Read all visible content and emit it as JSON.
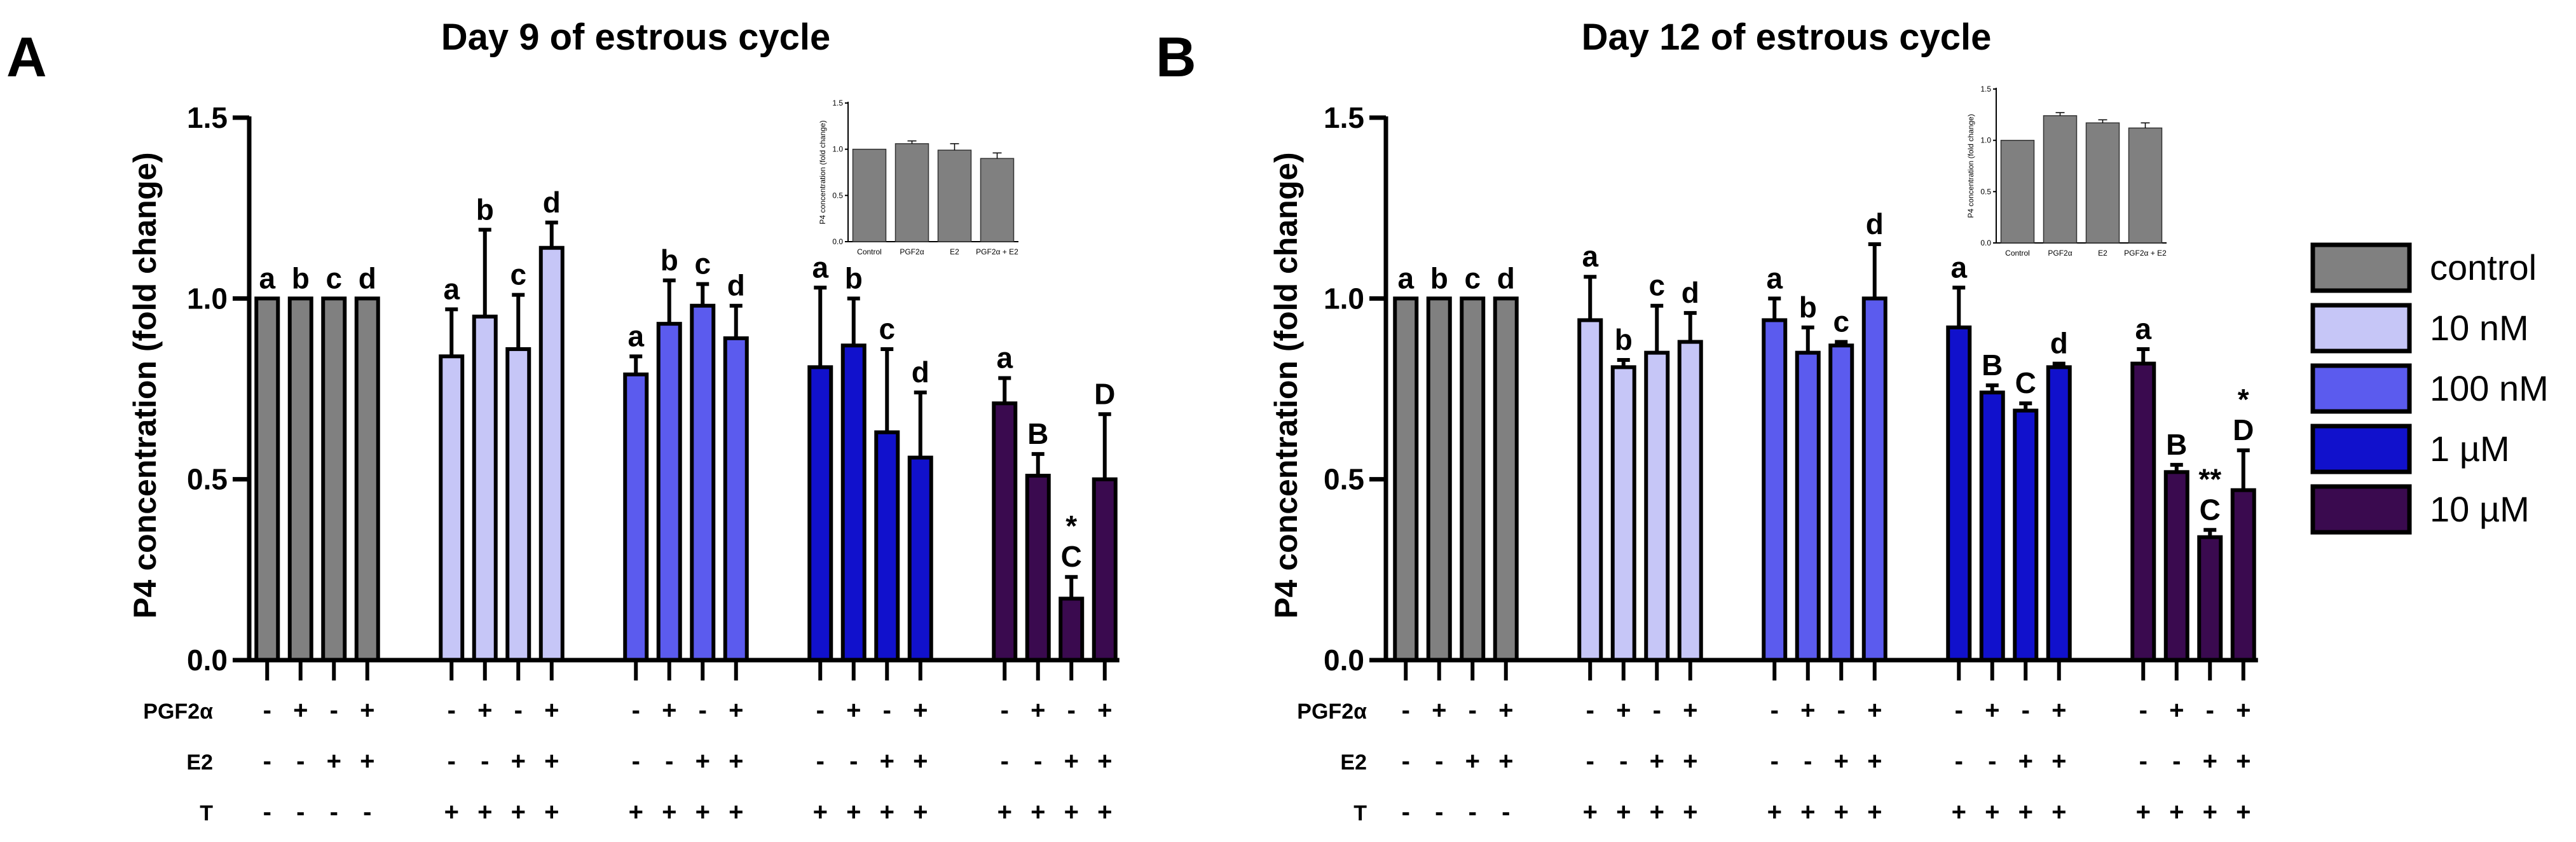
{
  "figure": {
    "panels": [
      "A",
      "B"
    ],
    "treatment_rows": [
      "PGF2α",
      "E2",
      "T"
    ],
    "legend": [
      {
        "label": "control",
        "color": "#808080"
      },
      {
        "label": "10 nM",
        "color": "#c6c6f7"
      },
      {
        "label": "100 nM",
        "color": "#5b5bee"
      },
      {
        "label": "1 µM",
        "color": "#1111cc"
      },
      {
        "label": "10 µM",
        "color": "#3a0a4f"
      }
    ]
  },
  "chart_data": [
    {
      "type": "bar",
      "panel_label": "A",
      "title": "Day 9 of estrous cycle",
      "ylabel": "P4 concentration (fold change)",
      "ylim": [
        0,
        1.5
      ],
      "yticks": [
        "0.0",
        "0.5",
        "1.0",
        "1.5"
      ],
      "treatments": {
        "PGF2α": [
          "-",
          "+",
          "-",
          "+",
          "-",
          "+",
          "-",
          "+",
          "-",
          "+",
          "-",
          "+",
          "-",
          "+",
          "-",
          "+",
          "-",
          "+",
          "-",
          "+"
        ],
        "E2": [
          "-",
          "-",
          "+",
          "+",
          "-",
          "-",
          "+",
          "+",
          "-",
          "-",
          "+",
          "+",
          "-",
          "-",
          "+",
          "+",
          "-",
          "-",
          "+",
          "+"
        ],
        "T": [
          "-",
          "-",
          "-",
          "-",
          "+",
          "+",
          "+",
          "+",
          "+",
          "+",
          "+",
          "+",
          "+",
          "+",
          "+",
          "+",
          "+",
          "+",
          "+",
          "+"
        ]
      },
      "groups": [
        {
          "name": "control",
          "values": [
            1.0,
            1.0,
            1.0,
            1.0
          ],
          "errors": [
            0,
            0,
            0,
            0
          ],
          "letters": [
            "a",
            "b",
            "c",
            "d"
          ],
          "stars": [
            "",
            "",
            "",
            ""
          ]
        },
        {
          "name": "10 nM",
          "values": [
            0.84,
            0.95,
            0.86,
            1.14
          ],
          "errors": [
            0.13,
            0.24,
            0.15,
            0.07
          ],
          "letters": [
            "a",
            "b",
            "c",
            "d"
          ],
          "stars": [
            "",
            "",
            "",
            ""
          ]
        },
        {
          "name": "100 nM",
          "values": [
            0.79,
            0.93,
            0.98,
            0.89
          ],
          "errors": [
            0.05,
            0.12,
            0.06,
            0.09
          ],
          "letters": [
            "a",
            "b",
            "c",
            "d"
          ],
          "stars": [
            "",
            "",
            "",
            ""
          ]
        },
        {
          "name": "1 µM",
          "values": [
            0.81,
            0.87,
            0.63,
            0.56
          ],
          "errors": [
            0.22,
            0.13,
            0.23,
            0.18
          ],
          "letters": [
            "a",
            "b",
            "c",
            "d"
          ],
          "stars": [
            "",
            "",
            "",
            ""
          ]
        },
        {
          "name": "10 µM",
          "values": [
            0.71,
            0.51,
            0.17,
            0.5
          ],
          "errors": [
            0.07,
            0.06,
            0.06,
            0.18
          ],
          "letters": [
            "a",
            "B",
            "C",
            "D"
          ],
          "stars": [
            "",
            "",
            "*",
            ""
          ]
        }
      ],
      "inset": {
        "type": "bar",
        "ylabel": "P4 concentration (fold change)",
        "ylim": [
          0,
          1.5
        ],
        "yticks": [
          "0.0",
          "0.5",
          "1.0",
          "1.5"
        ],
        "categories": [
          "Control",
          "PGF2α",
          "E2",
          "PGF2α + E2"
        ],
        "values": [
          1.0,
          1.06,
          0.99,
          0.9
        ],
        "errors": [
          0,
          0.03,
          0.07,
          0.06
        ]
      }
    },
    {
      "type": "bar",
      "panel_label": "B",
      "title": "Day 12 of estrous cycle",
      "ylabel": "P4 concentration (fold change)",
      "ylim": [
        0,
        1.5
      ],
      "yticks": [
        "0.0",
        "0.5",
        "1.0",
        "1.5"
      ],
      "treatments": {
        "PGF2α": [
          "-",
          "+",
          "-",
          "+",
          "-",
          "+",
          "-",
          "+",
          "-",
          "+",
          "-",
          "+",
          "-",
          "+",
          "-",
          "+",
          "-",
          "+",
          "-",
          "+"
        ],
        "E2": [
          "-",
          "-",
          "+",
          "+",
          "-",
          "-",
          "+",
          "+",
          "-",
          "-",
          "+",
          "+",
          "-",
          "-",
          "+",
          "+",
          "-",
          "-",
          "+",
          "+"
        ],
        "T": [
          "-",
          "-",
          "-",
          "-",
          "+",
          "+",
          "+",
          "+",
          "+",
          "+",
          "+",
          "+",
          "+",
          "+",
          "+",
          "+",
          "+",
          "+",
          "+",
          "+"
        ]
      },
      "groups": [
        {
          "name": "control",
          "values": [
            1.0,
            1.0,
            1.0,
            1.0
          ],
          "errors": [
            0,
            0,
            0,
            0
          ],
          "letters": [
            "a",
            "b",
            "c",
            "d"
          ],
          "stars": [
            "",
            "",
            "",
            ""
          ]
        },
        {
          "name": "10 nM",
          "values": [
            0.94,
            0.81,
            0.85,
            0.88
          ],
          "errors": [
            0.12,
            0.02,
            0.13,
            0.08
          ],
          "letters": [
            "a",
            "b",
            "c",
            "d"
          ],
          "stars": [
            "",
            "",
            "",
            ""
          ]
        },
        {
          "name": "100 nM",
          "values": [
            0.94,
            0.85,
            0.87,
            1.0
          ],
          "errors": [
            0.06,
            0.07,
            0.01,
            0.15
          ],
          "letters": [
            "a",
            "b",
            "c",
            "d"
          ],
          "stars": [
            "",
            "",
            "",
            ""
          ]
        },
        {
          "name": "1 µM",
          "values": [
            0.92,
            0.74,
            0.69,
            0.81
          ],
          "errors": [
            0.11,
            0.02,
            0.02,
            0.01
          ],
          "letters": [
            "a",
            "B",
            "C",
            "d"
          ],
          "stars": [
            "",
            "",
            "",
            ""
          ]
        },
        {
          "name": "10 µM",
          "values": [
            0.82,
            0.52,
            0.34,
            0.47
          ],
          "errors": [
            0.04,
            0.02,
            0.02,
            0.11
          ],
          "letters": [
            "a",
            "B",
            "C",
            "D"
          ],
          "stars": [
            "",
            "",
            "**",
            "*"
          ]
        }
      ],
      "inset": {
        "type": "bar",
        "ylabel": "P4 concentration (fold change)",
        "ylim": [
          0,
          1.5
        ],
        "yticks": [
          "0.0",
          "0.5",
          "1.0",
          "1.5"
        ],
        "categories": [
          "Control",
          "PGF2α",
          "E2",
          "PGF2α + E2"
        ],
        "values": [
          1.0,
          1.24,
          1.17,
          1.12
        ],
        "errors": [
          0,
          0.03,
          0.03,
          0.05
        ]
      }
    }
  ]
}
